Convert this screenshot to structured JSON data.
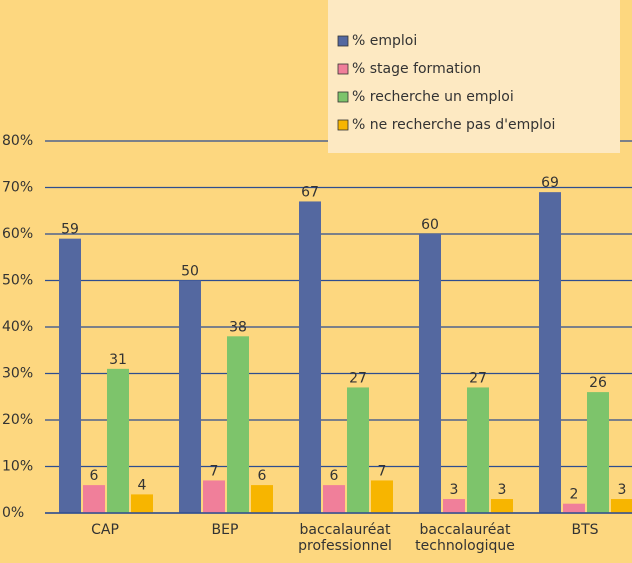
{
  "chart_data": {
    "type": "bar",
    "categories": [
      "CAP",
      "BEP",
      "baccalauréat professionnel",
      "baccalauréat technologique",
      "BTS"
    ],
    "series": [
      {
        "name": "% emploi",
        "color": "#5468a0",
        "values": [
          59,
          50,
          67,
          60,
          69
        ]
      },
      {
        "name": "% stage formation",
        "color": "#f07f9a",
        "values": [
          6,
          7,
          6,
          3,
          2
        ]
      },
      {
        "name": "% recherche un emploi",
        "color": "#7dc46b",
        "values": [
          31,
          38,
          27,
          27,
          26
        ]
      },
      {
        "name": "% ne recherche pas d'emploi",
        "color": "#f7b500",
        "values": [
          4,
          6,
          7,
          3,
          3
        ]
      }
    ],
    "ylim": [
      0,
      80
    ],
    "yticks": [
      {
        "value": 0,
        "label": "0%"
      },
      {
        "value": 10,
        "label": "10%"
      },
      {
        "value": 20,
        "label": "20%"
      },
      {
        "value": 30,
        "label": "30%"
      },
      {
        "value": 40,
        "label": "40%"
      },
      {
        "value": 50,
        "label": "50%"
      },
      {
        "value": 60,
        "label": "60%"
      },
      {
        "value": 70,
        "label": "70%"
      },
      {
        "value": 80,
        "label": "80%"
      }
    ],
    "grid": true,
    "legend": "top-right"
  }
}
